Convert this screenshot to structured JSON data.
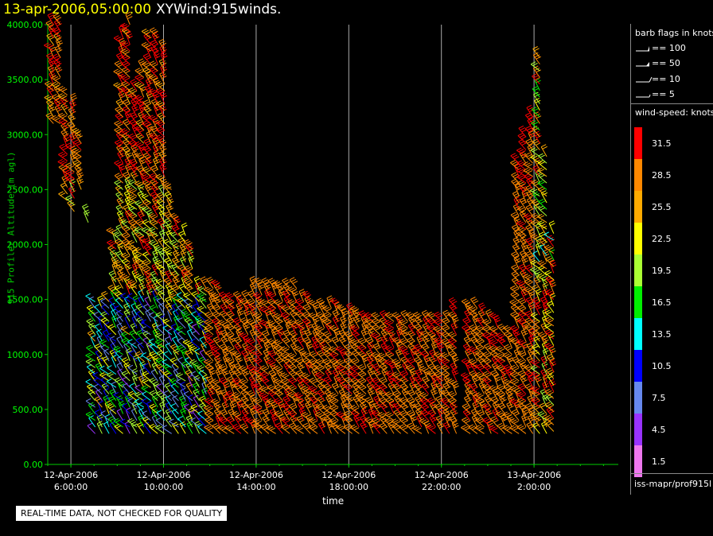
{
  "header": {
    "date": "13-apr-2006,05:00:00",
    "name": "XYWind:915winds."
  },
  "quality_note": "REAL-TIME DATA, NOT CHECKED FOR QUALITY",
  "source_label": "iss-mapr/prof915l",
  "legend": {
    "barb_title": "barb flags in knots",
    "barbs": [
      {
        "label": "== 100"
      },
      {
        "label": "== 50"
      },
      {
        "label": "== 10"
      },
      {
        "label": "== 5"
      }
    ],
    "speed_title": "wind-speed: knots",
    "speeds": [
      {
        "label": "31.5",
        "color": "#ff0000"
      },
      {
        "label": "28.5",
        "color": "#ff8800"
      },
      {
        "label": "25.5",
        "color": "#ffaa00"
      },
      {
        "label": "22.5",
        "color": "#ffff00"
      },
      {
        "label": "19.5",
        "color": "#aaff33"
      },
      {
        "label": "16.5",
        "color": "#00ee00"
      },
      {
        "label": "13.5",
        "color": "#00ffff"
      },
      {
        "label": "10.5",
        "color": "#0000ff"
      },
      {
        "label": "7.5",
        "color": "#6688ee"
      },
      {
        "label": "4.5",
        "color": "#9933ff"
      },
      {
        "label": "1.5",
        "color": "#ee77ee"
      }
    ]
  },
  "chart_data": {
    "type": "wind-barb",
    "title": "XYWind:915winds.",
    "xlabel": "time",
    "ylabel": "915 Profiler Altitude (m agl)",
    "ylim": [
      0,
      4000
    ],
    "xlim": [
      "2006-04-12 05:00",
      "2006-04-13 05:00"
    ],
    "yticks": [
      "0.00",
      "500.00",
      "1000.00",
      "1500.00",
      "2000.00",
      "2500.00",
      "3000.00",
      "3500.00",
      "4000.00"
    ],
    "xticks": [
      {
        "date": "12-Apr-2006",
        "time": "6:00:00"
      },
      {
        "date": "12-Apr-2006",
        "time": "10:00:00"
      },
      {
        "date": "12-Apr-2006",
        "time": "14:00:00"
      },
      {
        "date": "12-Apr-2006",
        "time": "18:00:00"
      },
      {
        "date": "12-Apr-2006",
        "time": "22:00:00"
      },
      {
        "date": "13-Apr-2006",
        "time": "2:00:00"
      }
    ],
    "grid": "vertical",
    "columns": [
      {
        "t": 5.25,
        "top": 4000,
        "low": 3100,
        "low_top": 500,
        "gap_low": 2200,
        "gap_high": 500
      },
      {
        "t": 5.55,
        "top": 4000,
        "low": 3100,
        "low_top": 480,
        "gap_low": 2200,
        "gap_high": 500
      },
      {
        "t": 5.85,
        "top": 3400,
        "low": 2400,
        "low_top": 1700,
        "gap_low": 2200,
        "gap_high": 1700
      },
      {
        "t": 6.15,
        "top": 3300,
        "low": 2300,
        "low_top": 1650,
        "gap_low": 2100,
        "gap_high": 1650
      },
      {
        "t": 6.45,
        "top": 3000,
        "low": 2500,
        "low_top": 1650,
        "gap_low": 2200,
        "gap_high": 1650
      },
      {
        "t": 6.75,
        "top": 2300,
        "low": 2200,
        "low_top": 1550,
        "gap_low": 2100,
        "gap_high": 1550
      },
      {
        "t": 7.05,
        "top": 1500,
        "low": 280,
        "low_top": 1500,
        "gap_low": 0,
        "gap_high": 0
      },
      {
        "t": 7.35,
        "top": 1450,
        "low": 280,
        "low_top": 1450,
        "gap_low": 0,
        "gap_high": 0
      },
      {
        "t": 7.65,
        "top": 1500,
        "low": 280,
        "low_top": 1500,
        "gap_low": 0,
        "gap_high": 0
      },
      {
        "t": 7.95,
        "top": 2100,
        "low": 280,
        "low_top": 2100,
        "gap_low": 0,
        "gap_high": 0
      },
      {
        "t": 8.25,
        "top": 3900,
        "low": 280,
        "low_top": 3900,
        "gap_low": 0,
        "gap_high": 0
      },
      {
        "t": 8.55,
        "top": 4000,
        "low": 280,
        "low_top": 4000,
        "gap_low": 0,
        "gap_high": 0
      },
      {
        "t": 8.85,
        "top": 3400,
        "low": 280,
        "low_top": 3400,
        "gap_low": 0,
        "gap_high": 0
      },
      {
        "t": 9.15,
        "top": 3600,
        "low": 280,
        "low_top": 3600,
        "gap_low": 0,
        "gap_high": 0
      },
      {
        "t": 9.45,
        "top": 3900,
        "low": 280,
        "low_top": 3900,
        "gap_low": 0,
        "gap_high": 0
      },
      {
        "t": 9.75,
        "top": 3900,
        "low": 280,
        "low_top": 3900,
        "gap_low": 0,
        "gap_high": 0
      },
      {
        "t": 10.05,
        "top": 3800,
        "low": 280,
        "low_top": 3800,
        "gap_low": 0,
        "gap_high": 0
      },
      {
        "t": 10.35,
        "top": 2500,
        "low": 280,
        "low_top": 2500,
        "gap_low": 0,
        "gap_high": 0
      },
      {
        "t": 10.65,
        "top": 2200,
        "low": 280,
        "low_top": 2200,
        "gap_low": 0,
        "gap_high": 0
      },
      {
        "t": 10.95,
        "top": 2100,
        "low": 280,
        "low_top": 2100,
        "gap_low": 0,
        "gap_high": 0
      },
      {
        "t": 11.25,
        "top": 2000,
        "low": 280,
        "low_top": 2000,
        "gap_low": 0,
        "gap_high": 0
      },
      {
        "t": 11.55,
        "top": 1600,
        "low": 280,
        "low_top": 1600,
        "gap_low": 0,
        "gap_high": 0
      },
      {
        "t": 11.85,
        "top": 1600,
        "low": 280,
        "low_top": 1600,
        "gap_low": 0,
        "gap_high": 0
      },
      {
        "t": 12.15,
        "top": 1600,
        "low": 280,
        "low_top": 1600,
        "gap_low": 0,
        "gap_high": 0
      },
      {
        "t": 12.45,
        "top": 1600,
        "low": 280,
        "low_top": 1600,
        "gap_low": 0,
        "gap_high": 0
      },
      {
        "t": 12.75,
        "top": 1500,
        "low": 280,
        "low_top": 1500,
        "gap_low": 0,
        "gap_high": 0
      },
      {
        "t": 13.05,
        "top": 1500,
        "low": 280,
        "low_top": 1500,
        "gap_low": 0,
        "gap_high": 0
      },
      {
        "t": 13.35,
        "top": 1500,
        "low": 280,
        "low_top": 1500,
        "gap_low": 0,
        "gap_high": 0
      },
      {
        "t": 13.65,
        "top": 1500,
        "low": 280,
        "low_top": 1500,
        "gap_low": 0,
        "gap_high": 0
      },
      {
        "t": 13.95,
        "top": 1600,
        "low": 280,
        "low_top": 1600,
        "gap_low": 0,
        "gap_high": 0
      },
      {
        "t": 14.25,
        "top": 1600,
        "low": 280,
        "low_top": 1600,
        "gap_low": 0,
        "gap_high": 0
      },
      {
        "t": 14.55,
        "top": 1650,
        "low": 280,
        "low_top": 1650,
        "gap_low": 0,
        "gap_high": 0
      },
      {
        "t": 14.85,
        "top": 1650,
        "low": 280,
        "low_top": 1650,
        "gap_low": 0,
        "gap_high": 0
      },
      {
        "t": 15.15,
        "top": 1650,
        "low": 280,
        "low_top": 1650,
        "gap_low": 0,
        "gap_high": 0
      },
      {
        "t": 15.45,
        "top": 1600,
        "low": 280,
        "low_top": 1600,
        "gap_low": 0,
        "gap_high": 0
      },
      {
        "t": 15.75,
        "top": 1600,
        "low": 280,
        "low_top": 1600,
        "gap_low": 0,
        "gap_high": 0
      },
      {
        "t": 16.05,
        "top": 1500,
        "low": 280,
        "low_top": 1500,
        "gap_low": 0,
        "gap_high": 0
      },
      {
        "t": 16.35,
        "top": 1500,
        "low": 280,
        "low_top": 1500,
        "gap_low": 0,
        "gap_high": 0
      },
      {
        "t": 16.65,
        "top": 1450,
        "low": 280,
        "low_top": 1450,
        "gap_low": 0,
        "gap_high": 0
      },
      {
        "t": 16.95,
        "top": 1450,
        "low": 280,
        "low_top": 1450,
        "gap_low": 0,
        "gap_high": 0
      },
      {
        "t": 17.25,
        "top": 1450,
        "low": 280,
        "low_top": 1450,
        "gap_low": 0,
        "gap_high": 0
      },
      {
        "t": 17.55,
        "top": 1450,
        "low": 280,
        "low_top": 1450,
        "gap_low": 0,
        "gap_high": 0
      },
      {
        "t": 17.85,
        "top": 1400,
        "low": 280,
        "low_top": 1400,
        "gap_low": 0,
        "gap_high": 0
      },
      {
        "t": 18.15,
        "top": 1400,
        "low": 280,
        "low_top": 1400,
        "gap_low": 0,
        "gap_high": 0
      },
      {
        "t": 18.45,
        "top": 1400,
        "low": 280,
        "low_top": 1400,
        "gap_low": 0,
        "gap_high": 0
      },
      {
        "t": 18.75,
        "top": 1350,
        "low": 280,
        "low_top": 1350,
        "gap_low": 0,
        "gap_high": 0
      },
      {
        "t": 19.05,
        "top": 1350,
        "low": 280,
        "low_top": 1350,
        "gap_low": 0,
        "gap_high": 0
      },
      {
        "t": 19.35,
        "top": 1300,
        "low": 280,
        "low_top": 1300,
        "gap_low": 0,
        "gap_high": 0
      },
      {
        "t": 19.65,
        "top": 1300,
        "low": 280,
        "low_top": 1300,
        "gap_low": 0,
        "gap_high": 0
      },
      {
        "t": 19.95,
        "top": 1300,
        "low": 280,
        "low_top": 1300,
        "gap_low": 0,
        "gap_high": 0
      },
      {
        "t": 20.25,
        "top": 1300,
        "low": 280,
        "low_top": 1300,
        "gap_low": 0,
        "gap_high": 0
      },
      {
        "t": 20.55,
        "top": 1300,
        "low": 280,
        "low_top": 1300,
        "gap_low": 0,
        "gap_high": 0
      },
      {
        "t": 20.85,
        "top": 1300,
        "low": 280,
        "low_top": 1300,
        "gap_low": 0,
        "gap_high": 0
      },
      {
        "t": 21.15,
        "top": 1300,
        "low": 280,
        "low_top": 1300,
        "gap_low": 0,
        "gap_high": 0
      },
      {
        "t": 21.45,
        "top": 1300,
        "low": 280,
        "low_top": 1300,
        "gap_low": 0,
        "gap_high": 0
      },
      {
        "t": 21.75,
        "top": 1350,
        "low": 280,
        "low_top": 1350,
        "gap_low": 0,
        "gap_high": 0
      },
      {
        "t": 22.05,
        "top": 1300,
        "low": 280,
        "low_top": 1300,
        "gap_low": 0,
        "gap_high": 0
      },
      {
        "t": 22.35,
        "top": 1300,
        "low": 280,
        "low_top": 1300,
        "gap_low": 0,
        "gap_high": 0
      },
      {
        "t": 22.65,
        "top": 1450,
        "low": 280,
        "low_top": 1450,
        "gap_low": 0,
        "gap_high": 0
      },
      {
        "t": 23.25,
        "top": 1450,
        "low": 280,
        "low_top": 1450,
        "gap_low": 0,
        "gap_high": 0
      },
      {
        "t": 23.55,
        "top": 1450,
        "low": 280,
        "low_top": 1450,
        "gap_low": 0,
        "gap_high": 0
      },
      {
        "t": 23.85,
        "top": 1400,
        "low": 280,
        "low_top": 1400,
        "gap_low": 0,
        "gap_high": 0
      },
      {
        "t": 24.15,
        "top": 1350,
        "low": 280,
        "low_top": 1350,
        "gap_low": 0,
        "gap_high": 0
      },
      {
        "t": 24.45,
        "top": 1300,
        "low": 280,
        "low_top": 1300,
        "gap_low": 0,
        "gap_high": 0
      },
      {
        "t": 24.75,
        "top": 1200,
        "low": 280,
        "low_top": 1200,
        "gap_low": 0,
        "gap_high": 0
      },
      {
        "t": 25.05,
        "top": 1200,
        "low": 280,
        "low_top": 1200,
        "gap_low": 0,
        "gap_high": 0
      },
      {
        "t": 25.35,
        "top": 2750,
        "low": 280,
        "low_top": 2750,
        "gap_low": 0,
        "gap_high": 0
      },
      {
        "t": 25.65,
        "top": 3000,
        "low": 280,
        "low_top": 3000,
        "gap_low": 0,
        "gap_high": 0
      },
      {
        "t": 25.95,
        "top": 3200,
        "low": 280,
        "low_top": 3200,
        "gap_low": 0,
        "gap_high": 0
      },
      {
        "t": 26.25,
        "top": 3700,
        "low": 280,
        "low_top": 3700,
        "gap_low": 0,
        "gap_high": 0
      },
      {
        "t": 26.55,
        "top": 2800,
        "low": 280,
        "low_top": 2800,
        "gap_low": 0,
        "gap_high": 0
      },
      {
        "t": 26.85,
        "top": 2100,
        "low": 300,
        "low_top": 2100,
        "gap_low": 0,
        "gap_high": 0
      }
    ]
  }
}
